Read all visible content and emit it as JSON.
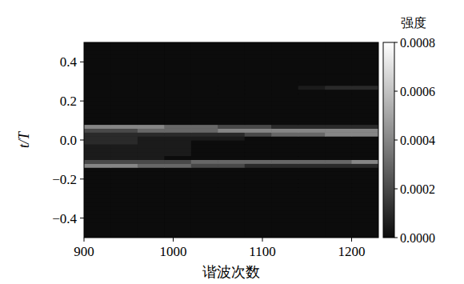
{
  "chart_data": {
    "type": "heatmap",
    "x_label": "谐波次数",
    "y_label": "t/T",
    "colorbar_label": "强度",
    "xlim": [
      900,
      1230
    ],
    "ylim": [
      -0.5,
      0.5
    ],
    "xticks": [
      900,
      1000,
      1100,
      1200
    ],
    "yticks": [
      {
        "value": -0.4,
        "label": "−0.4"
      },
      {
        "value": -0.2,
        "label": "−0.2"
      },
      {
        "value": 0,
        "label": "0.0"
      },
      0.2,
      0.4
    ],
    "x_edges": [
      900,
      930,
      960,
      990,
      1020,
      1050,
      1080,
      1110,
      1140,
      1170,
      1200,
      1230
    ],
    "y_edges": [
      -0.5,
      -0.48,
      -0.46,
      -0.44,
      -0.42,
      -0.4,
      -0.38,
      -0.36,
      -0.34,
      -0.32,
      -0.3,
      -0.28,
      -0.26,
      -0.24,
      -0.22,
      -0.2,
      -0.18,
      -0.16,
      -0.14,
      -0.12,
      -0.1,
      -0.08,
      -0.06,
      -0.04,
      -0.02,
      0,
      0.02,
      0.04,
      0.06,
      0.08,
      0.1,
      0.12,
      0.14,
      0.16,
      0.18,
      0.2,
      0.22,
      0.24,
      0.26,
      0.28,
      0.3,
      0.32,
      0.34,
      0.36,
      0.38,
      0.4,
      0.42,
      0.44,
      0.46,
      0.48,
      0.5
    ],
    "z": [
      [
        0,
        0,
        0,
        0,
        0,
        0,
        0,
        0,
        0,
        0,
        0
      ],
      [
        0,
        0,
        0,
        0,
        0,
        0,
        0,
        0,
        0,
        0,
        0
      ],
      [
        0,
        0,
        0,
        0,
        0,
        0,
        0,
        0,
        0,
        0,
        0
      ],
      [
        0,
        0,
        0,
        0,
        0,
        0,
        0,
        0,
        0,
        0,
        0
      ],
      [
        0,
        0,
        0,
        0,
        0,
        0,
        0,
        0,
        0,
        0,
        0
      ],
      [
        0,
        0,
        0,
        0,
        0,
        0,
        0,
        0,
        0,
        0,
        0
      ],
      [
        0,
        0,
        0,
        0,
        0,
        0,
        0,
        0,
        0,
        0,
        0
      ],
      [
        0,
        0,
        0,
        0,
        0,
        0,
        0,
        0,
        0,
        0,
        0
      ],
      [
        0,
        0,
        0,
        0,
        0,
        0,
        0,
        0,
        0,
        0,
        0
      ],
      [
        0,
        0,
        0,
        0,
        0,
        0,
        0,
        0,
        0,
        0,
        0
      ],
      [
        0,
        0,
        0,
        0,
        0,
        0,
        0,
        0,
        0,
        0,
        0
      ],
      [
        0,
        0,
        0,
        0,
        0,
        0,
        0,
        0,
        0,
        0,
        0
      ],
      [
        0,
        0,
        0,
        0,
        0,
        0,
        0,
        0,
        0,
        0,
        0
      ],
      [
        0,
        0,
        0,
        0,
        0,
        0,
        0,
        0,
        0,
        0,
        0
      ],
      [
        0,
        0,
        0,
        0,
        0,
        0,
        0,
        0,
        0,
        0,
        0
      ],
      [
        0,
        0,
        0,
        0,
        0,
        0,
        0,
        0,
        0,
        0,
        0
      ],
      [
        0,
        0,
        0,
        0,
        0,
        0,
        0,
        0,
        0,
        0,
        0
      ],
      [
        0,
        0,
        0,
        0,
        0,
        0,
        0,
        0,
        0,
        0,
        0
      ],
      [
        0.0004,
        0.0004,
        0.0003,
        0.0003,
        0.0002,
        0.0002,
        0.0001,
        0.0001,
        0.0001,
        0.0001,
        0.0001
      ],
      [
        0.0002,
        0.0002,
        0.0002,
        0.0002,
        0.0003,
        0.0003,
        0.0003,
        0.0003,
        0.0003,
        0.0003,
        0.0004
      ],
      [
        5e-05,
        5e-05,
        5e-05,
        0,
        0,
        0,
        0,
        0,
        0,
        0,
        0
      ],
      [
        5e-05,
        5e-05,
        5e-05,
        5e-05,
        0,
        0,
        0,
        0,
        0,
        0,
        0
      ],
      [
        5e-05,
        5e-05,
        5e-05,
        5e-05,
        0,
        0,
        0,
        0,
        0,
        0,
        0
      ],
      [
        5e-05,
        5e-05,
        5e-05,
        5e-05,
        0,
        0,
        0,
        0,
        0,
        0,
        0
      ],
      [
        0.0001,
        0.0001,
        5e-05,
        5e-05,
        0,
        0,
        0,
        0,
        0,
        0,
        0
      ],
      [
        0.0001,
        0.0001,
        5e-05,
        5e-05,
        5e-05,
        5e-05,
        0,
        0,
        0,
        0,
        0
      ],
      [
        0.0001,
        0.0001,
        0.0001,
        0.0001,
        0.0001,
        0.0001,
        0.0002,
        0.0003,
        0.0003,
        0.0004,
        0.0004
      ],
      [
        0.0002,
        0.0002,
        0.0003,
        0.0003,
        0.0003,
        0.0004,
        0.0004,
        0.0004,
        0.0004,
        0.0004,
        0.0004
      ],
      [
        0.0004,
        0.0004,
        0.0004,
        0.0003,
        0.0003,
        0.0002,
        0.0002,
        0.0001,
        0.0001,
        0.0001,
        0.0001
      ],
      [
        0,
        0,
        0,
        0,
        0,
        0,
        0,
        0,
        0,
        0,
        0
      ],
      [
        0,
        0,
        0,
        0,
        0,
        0,
        0,
        0,
        0,
        0,
        0
      ],
      [
        0,
        0,
        0,
        0,
        0,
        0,
        0,
        0,
        0,
        0,
        0
      ],
      [
        0,
        0,
        0,
        0,
        0,
        0,
        0,
        0,
        0,
        0,
        0
      ],
      [
        0,
        0,
        0,
        0,
        0,
        0,
        0,
        0,
        0,
        0,
        0
      ],
      [
        0,
        0,
        0,
        0,
        0,
        0,
        0,
        0,
        0,
        0,
        0
      ],
      [
        0,
        0,
        0,
        0,
        0,
        0,
        0,
        0,
        0,
        0,
        0
      ],
      [
        0,
        0,
        0,
        0,
        0,
        0,
        0,
        0,
        0,
        0,
        0
      ],
      [
        0,
        0,
        0,
        0,
        0,
        0,
        0,
        0,
        0,
        0,
        0
      ],
      [
        0,
        0,
        0,
        0,
        0,
        0,
        0,
        0,
        5e-05,
        0.0001,
        0.0001
      ],
      [
        0,
        0,
        0,
        0,
        0,
        0,
        0,
        0,
        0,
        0,
        0
      ],
      [
        0,
        0,
        0,
        0,
        0,
        0,
        0,
        0,
        0,
        0,
        0
      ],
      [
        0,
        0,
        0,
        0,
        0,
        0,
        0,
        0,
        0,
        0,
        0
      ],
      [
        0,
        0,
        0,
        0,
        0,
        0,
        0,
        0,
        0,
        0,
        0
      ],
      [
        0,
        0,
        0,
        0,
        0,
        0,
        0,
        0,
        0,
        0,
        0
      ],
      [
        0,
        0,
        0,
        0,
        0,
        0,
        0,
        0,
        0,
        0,
        0
      ],
      [
        0,
        0,
        0,
        0,
        0,
        0,
        0,
        0,
        0,
        0,
        0
      ],
      [
        0,
        0,
        0,
        0,
        0,
        0,
        0,
        0,
        0,
        0,
        0
      ],
      [
        0,
        0,
        0,
        0,
        0,
        0,
        0,
        0,
        0,
        0,
        0
      ],
      [
        0,
        0,
        0,
        0,
        0,
        0,
        0,
        0,
        0,
        0,
        0
      ],
      [
        0,
        0,
        0,
        0,
        0,
        0,
        0,
        0,
        0,
        0,
        0
      ]
    ],
    "colorbar": {
      "lim": [
        0,
        0.0008
      ],
      "ticks": [
        {
          "value": 0,
          "label": "0.0000"
        },
        0.0002,
        0.0004,
        0.0006,
        0.0008
      ]
    }
  }
}
